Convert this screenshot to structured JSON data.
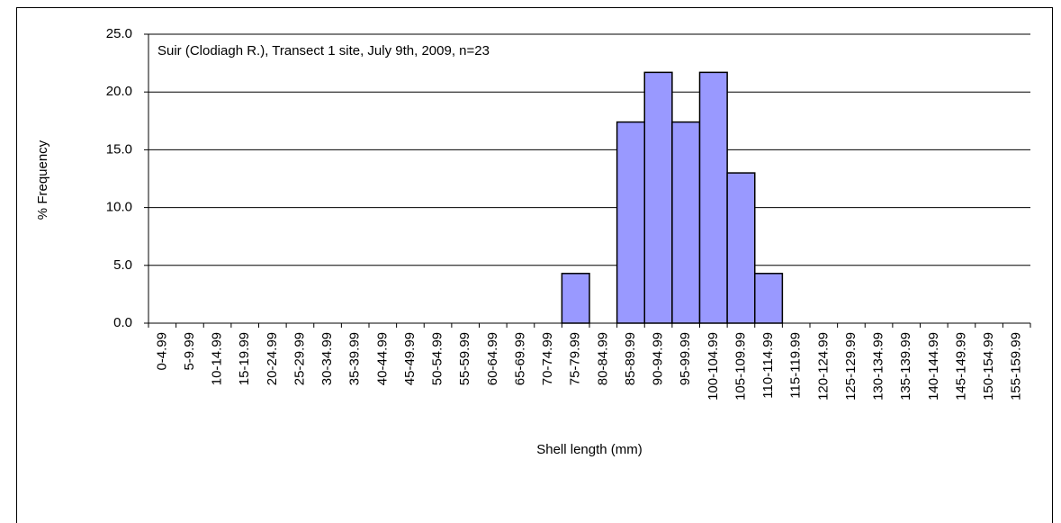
{
  "chart_data": {
    "type": "bar",
    "annotation": "Suir (Clodiagh R.), Transect 1 site, July 9th, 2009, n=23",
    "x_label": "Shell length (mm)",
    "y_label": "% Frequency",
    "categories": [
      "0-4.99",
      "5-9.99",
      "10-14.99",
      "15-19.99",
      "20-24.99",
      "25-29.99",
      "30-34.99",
      "35-39.99",
      "40-44.99",
      "45-49.99",
      "50-54.99",
      "55-59.99",
      "60-64.99",
      "65-69.99",
      "70-74.99",
      "75-79.99",
      "80-84.99",
      "85-89.99",
      "90-94.99",
      "95-99.99",
      "100-104.99",
      "105-109.99",
      "110-114.99",
      "115-119.99",
      "120-124.99",
      "125-129.99",
      "130-134.99",
      "135-139.99",
      "140-144.99",
      "145-149.99",
      "150-154.99",
      "155-159.99"
    ],
    "values": [
      0,
      0,
      0,
      0,
      0,
      0,
      0,
      0,
      0,
      0,
      0,
      0,
      0,
      0,
      0,
      4.3,
      0,
      17.4,
      21.7,
      17.4,
      21.7,
      13.0,
      4.3,
      0,
      0,
      0,
      0,
      0,
      0,
      0,
      0,
      0
    ],
    "color": "#9999ff",
    "ylim": [
      0,
      25
    ],
    "yticks": [
      {
        "value": 0,
        "label": "0.0"
      },
      {
        "value": 5,
        "label": "5.0"
      },
      {
        "value": 10,
        "label": "10.0"
      },
      {
        "value": 15,
        "label": "15.0"
      },
      {
        "value": 20,
        "label": "20.0"
      },
      {
        "value": 25,
        "label": "25.0"
      }
    ],
    "grid": true
  }
}
